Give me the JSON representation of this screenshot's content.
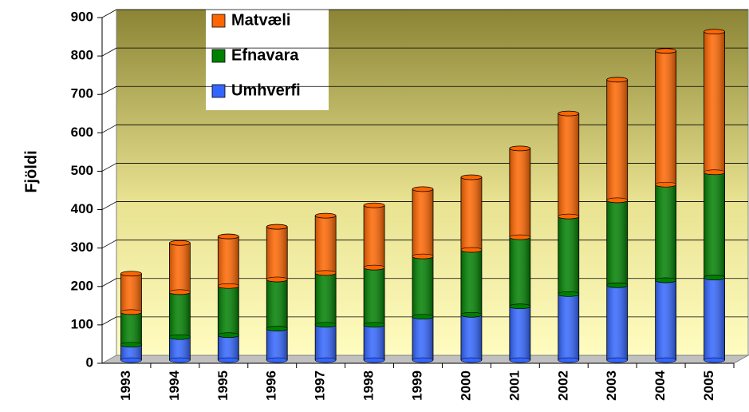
{
  "chart_data": {
    "type": "bar",
    "stacked": true,
    "y_label": "Fjöldi",
    "categories": [
      "1993",
      "1994",
      "1995",
      "1996",
      "1997",
      "1998",
      "1999",
      "2000",
      "2001",
      "2002",
      "2003",
      "2004",
      "2005"
    ],
    "series": [
      {
        "name": "Umhverfi",
        "color": "#3366ff",
        "values": [
          40,
          60,
          65,
          82,
          92,
          92,
          113,
          118,
          140,
          172,
          195,
          208,
          215
        ]
      },
      {
        "name": "Efnavara",
        "color": "#008000",
        "values": [
          85,
          117,
          128,
          128,
          135,
          149,
          157,
          169,
          180,
          202,
          221,
          249,
          274
        ]
      },
      {
        "name": "Matvæli",
        "color": "#ff6600",
        "values": [
          100,
          128,
          129,
          137,
          149,
          162,
          175,
          189,
          231,
          268,
          314,
          348,
          366
        ]
      }
    ],
    "ylim": [
      0,
      900
    ],
    "yticks": [
      0,
      100,
      200,
      300,
      400,
      500,
      600,
      700,
      800,
      900
    ],
    "grid": true
  }
}
